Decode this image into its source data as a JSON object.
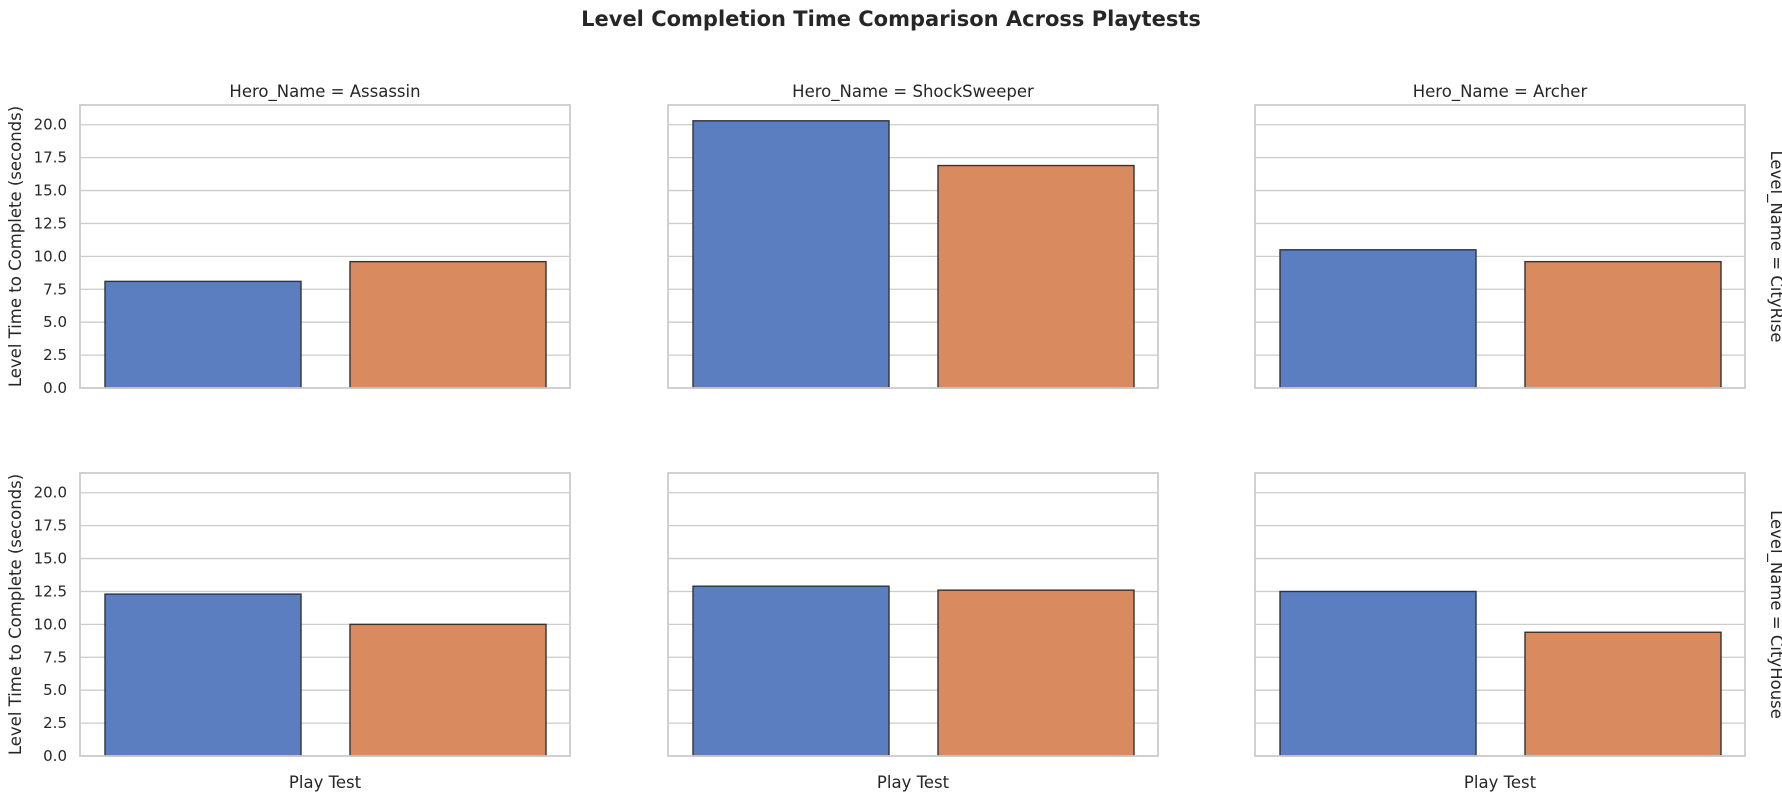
{
  "chart_data": {
    "type": "bar",
    "title": "Level Completion Time Comparison Across Playtests",
    "ylabel": "Level Time to Complete (seconds)",
    "xlabel": "Play Test",
    "ylim": [
      0,
      21.5
    ],
    "yticks": [
      "0.0",
      "2.5",
      "5.0",
      "7.5",
      "10.0",
      "12.5",
      "15.0",
      "17.5",
      "20.0"
    ],
    "grid": true,
    "colors": [
      "#5b7ec0",
      "#d98a5f"
    ],
    "col_titles": [
      "Hero_Name = Assassin",
      "Hero_Name = ShockSweeper",
      "Hero_Name = Archer"
    ],
    "row_titles": [
      "Level_Name = CityRise",
      "Level_Name = CityHouse"
    ],
    "panels": [
      [
        {
          "values": [
            8.1,
            9.6
          ]
        },
        {
          "values": [
            20.3,
            16.9
          ]
        },
        {
          "values": [
            10.5,
            9.6
          ]
        }
      ],
      [
        {
          "values": [
            12.3,
            10.0
          ]
        },
        {
          "values": [
            12.9,
            12.6
          ]
        },
        {
          "values": [
            12.5,
            9.4
          ]
        }
      ]
    ]
  }
}
